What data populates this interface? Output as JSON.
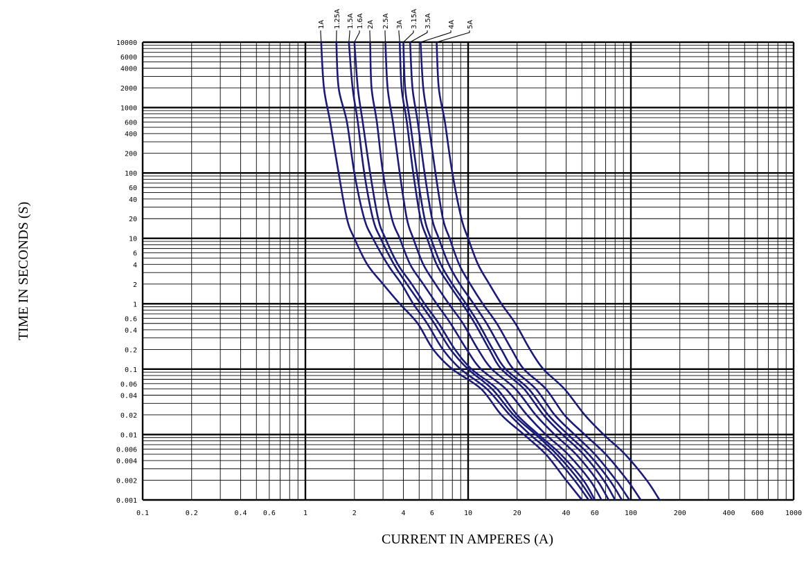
{
  "chart_data": {
    "type": "line",
    "title": "",
    "xlabel": "CURRENT IN AMPERES  (A)",
    "ylabel": "TIME IN SECONDS  (S)",
    "x_scale": "log",
    "y_scale": "log",
    "xlim": [
      0.1,
      1000
    ],
    "ylim": [
      0.001,
      10000
    ],
    "grid": true,
    "x_tick_labels": [
      {
        "value": 0.1,
        "label": "0.1"
      },
      {
        "value": 0.2,
        "label": "0.2"
      },
      {
        "value": 0.4,
        "label": "0.4"
      },
      {
        "value": 0.6,
        "label": "0.6"
      },
      {
        "value": 1,
        "label": "1"
      },
      {
        "value": 2,
        "label": "2"
      },
      {
        "value": 4,
        "label": "4"
      },
      {
        "value": 6,
        "label": "6"
      },
      {
        "value": 10,
        "label": "10"
      },
      {
        "value": 20,
        "label": "20"
      },
      {
        "value": 40,
        "label": "40"
      },
      {
        "value": 60,
        "label": "60"
      },
      {
        "value": 100,
        "label": "100"
      },
      {
        "value": 200,
        "label": "200"
      },
      {
        "value": 400,
        "label": "400"
      },
      {
        "value": 600,
        "label": "600"
      },
      {
        "value": 1000,
        "label": "1000"
      }
    ],
    "y_tick_labels": [
      {
        "value": 10000,
        "label": "10000"
      },
      {
        "value": 6000,
        "label": "6000"
      },
      {
        "value": 4000,
        "label": "4000"
      },
      {
        "value": 2000,
        "label": "2000"
      },
      {
        "value": 1000,
        "label": "1000"
      },
      {
        "value": 600,
        "label": "600"
      },
      {
        "value": 400,
        "label": "400"
      },
      {
        "value": 200,
        "label": "200"
      },
      {
        "value": 100,
        "label": "100"
      },
      {
        "value": 60,
        "label": "60"
      },
      {
        "value": 40,
        "label": "40"
      },
      {
        "value": 20,
        "label": "20"
      },
      {
        "value": 10,
        "label": "10"
      },
      {
        "value": 6,
        "label": "6"
      },
      {
        "value": 4,
        "label": "4"
      },
      {
        "value": 2,
        "label": "2"
      },
      {
        "value": 1,
        "label": "1"
      },
      {
        "value": 0.6,
        "label": "0.6"
      },
      {
        "value": 0.4,
        "label": "0.4"
      },
      {
        "value": 0.2,
        "label": "0.2"
      },
      {
        "value": 0.1,
        "label": "0.1"
      },
      {
        "value": 0.06,
        "label": "0.06"
      },
      {
        "value": 0.04,
        "label": "0.04"
      },
      {
        "value": 0.02,
        "label": "0.02"
      },
      {
        "value": 0.01,
        "label": "0.01"
      },
      {
        "value": 0.006,
        "label": "0.006"
      },
      {
        "value": 0.004,
        "label": "0.004"
      },
      {
        "value": 0.002,
        "label": "0.002"
      },
      {
        "value": 0.001,
        "label": "0.001"
      }
    ],
    "curve_color": "#1a1a7e",
    "grid_color": "#000000",
    "series": [
      {
        "name": "1A",
        "points": [
          [
            1.25,
            10000
          ],
          [
            1.3,
            2000
          ],
          [
            1.42,
            600
          ],
          [
            1.6,
            100
          ],
          [
            1.8,
            20
          ],
          [
            2.0,
            10
          ],
          [
            2.4,
            4
          ],
          [
            3.0,
            2
          ],
          [
            3.8,
            1
          ],
          [
            4.9,
            0.5
          ],
          [
            6.1,
            0.2
          ],
          [
            8.0,
            0.1
          ],
          [
            12.0,
            0.05
          ],
          [
            16.0,
            0.02
          ],
          [
            22.0,
            0.01
          ],
          [
            30.0,
            0.005
          ],
          [
            40.0,
            0.002
          ],
          [
            50.0,
            0.001
          ]
        ]
      },
      {
        "name": "1.25A",
        "points": [
          [
            1.55,
            10000
          ],
          [
            1.6,
            2000
          ],
          [
            1.8,
            600
          ],
          [
            2.0,
            100
          ],
          [
            2.3,
            20
          ],
          [
            2.6,
            10
          ],
          [
            3.2,
            4
          ],
          [
            3.9,
            2
          ],
          [
            4.6,
            1
          ],
          [
            5.6,
            0.5
          ],
          [
            7.0,
            0.2
          ],
          [
            9.0,
            0.1
          ],
          [
            13.0,
            0.05
          ],
          [
            18.0,
            0.02
          ],
          [
            24.0,
            0.01
          ],
          [
            33.0,
            0.005
          ],
          [
            45.0,
            0.002
          ],
          [
            55.0,
            0.001
          ]
        ]
      },
      {
        "name": "1.5A",
        "points": [
          [
            1.85,
            10000
          ],
          [
            1.95,
            2000
          ],
          [
            2.1,
            600
          ],
          [
            2.3,
            100
          ],
          [
            2.6,
            20
          ],
          [
            2.9,
            10
          ],
          [
            3.5,
            4
          ],
          [
            4.2,
            2
          ],
          [
            5.1,
            1
          ],
          [
            6.2,
            0.5
          ],
          [
            7.8,
            0.2
          ],
          [
            10.0,
            0.1
          ],
          [
            14.0,
            0.05
          ],
          [
            19.0,
            0.02
          ],
          [
            26.0,
            0.01
          ],
          [
            35.0,
            0.005
          ],
          [
            48.0,
            0.002
          ],
          [
            58.0,
            0.001
          ]
        ]
      },
      {
        "name": "1.6A",
        "points": [
          [
            2.0,
            10000
          ],
          [
            2.1,
            2000
          ],
          [
            2.25,
            600
          ],
          [
            2.5,
            100
          ],
          [
            2.8,
            20
          ],
          [
            3.1,
            10
          ],
          [
            3.7,
            4
          ],
          [
            4.5,
            2
          ],
          [
            5.4,
            1
          ],
          [
            6.6,
            0.5
          ],
          [
            8.3,
            0.2
          ],
          [
            10.5,
            0.1
          ],
          [
            15.0,
            0.05
          ],
          [
            20.0,
            0.02
          ],
          [
            27.0,
            0.01
          ],
          [
            37.0,
            0.005
          ],
          [
            51.0,
            0.002
          ],
          [
            60.0,
            0.001
          ]
        ]
      },
      {
        "name": "2A",
        "points": [
          [
            2.5,
            10000
          ],
          [
            2.55,
            2000
          ],
          [
            2.75,
            600
          ],
          [
            3.0,
            100
          ],
          [
            3.4,
            20
          ],
          [
            3.8,
            10
          ],
          [
            4.4,
            4
          ],
          [
            5.3,
            2
          ],
          [
            6.4,
            1
          ],
          [
            7.8,
            0.5
          ],
          [
            9.8,
            0.2
          ],
          [
            12.0,
            0.1
          ],
          [
            17.0,
            0.05
          ],
          [
            23.0,
            0.02
          ],
          [
            30.0,
            0.01
          ],
          [
            41.0,
            0.005
          ],
          [
            56.0,
            0.002
          ],
          [
            66.0,
            0.001
          ]
        ]
      },
      {
        "name": "2.5A",
        "points": [
          [
            3.1,
            10000
          ],
          [
            3.2,
            2000
          ],
          [
            3.45,
            600
          ],
          [
            3.8,
            100
          ],
          [
            4.2,
            20
          ],
          [
            4.6,
            10
          ],
          [
            5.3,
            4
          ],
          [
            6.3,
            2
          ],
          [
            7.6,
            1
          ],
          [
            9.3,
            0.5
          ],
          [
            11.5,
            0.2
          ],
          [
            14.0,
            0.1
          ],
          [
            19.5,
            0.05
          ],
          [
            26.0,
            0.02
          ],
          [
            34.0,
            0.01
          ],
          [
            46.0,
            0.005
          ],
          [
            62.0,
            0.002
          ],
          [
            73.0,
            0.001
          ]
        ]
      },
      {
        "name": "3A",
        "points": [
          [
            3.8,
            10000
          ],
          [
            3.9,
            2000
          ],
          [
            4.2,
            600
          ],
          [
            4.6,
            100
          ],
          [
            5.1,
            20
          ],
          [
            5.6,
            10
          ],
          [
            6.4,
            4
          ],
          [
            7.6,
            2
          ],
          [
            9.2,
            1
          ],
          [
            11.0,
            0.5
          ],
          [
            13.5,
            0.2
          ],
          [
            16.0,
            0.1
          ],
          [
            22.0,
            0.05
          ],
          [
            29.0,
            0.02
          ],
          [
            38.0,
            0.01
          ],
          [
            51.0,
            0.005
          ],
          [
            68.0,
            0.002
          ],
          [
            80.0,
            0.001
          ]
        ]
      },
      {
        "name": "3.15A",
        "points": [
          [
            4.0,
            10000
          ],
          [
            4.1,
            2000
          ],
          [
            4.4,
            600
          ],
          [
            4.85,
            100
          ],
          [
            5.4,
            20
          ],
          [
            5.9,
            10
          ],
          [
            6.8,
            4
          ],
          [
            8.0,
            2
          ],
          [
            9.7,
            1
          ],
          [
            11.6,
            0.5
          ],
          [
            14.2,
            0.2
          ],
          [
            17.0,
            0.1
          ],
          [
            23.5,
            0.05
          ],
          [
            31.0,
            0.02
          ],
          [
            41.0,
            0.01
          ],
          [
            55.0,
            0.005
          ],
          [
            74.0,
            0.002
          ],
          [
            88.0,
            0.001
          ]
        ]
      },
      {
        "name": "3.5A",
        "points": [
          [
            4.4,
            10000
          ],
          [
            4.55,
            2000
          ],
          [
            4.9,
            600
          ],
          [
            5.4,
            100
          ],
          [
            6.0,
            20
          ],
          [
            6.6,
            10
          ],
          [
            7.6,
            4
          ],
          [
            8.9,
            2
          ],
          [
            10.8,
            1
          ],
          [
            13.0,
            0.5
          ],
          [
            16.0,
            0.2
          ],
          [
            19.0,
            0.1
          ],
          [
            26.0,
            0.05
          ],
          [
            34.0,
            0.02
          ],
          [
            45.0,
            0.01
          ],
          [
            60.0,
            0.005
          ],
          [
            81.0,
            0.002
          ],
          [
            98.0,
            0.001
          ]
        ]
      },
      {
        "name": "4A",
        "points": [
          [
            5.1,
            10000
          ],
          [
            5.3,
            2000
          ],
          [
            5.7,
            600
          ],
          [
            6.3,
            100
          ],
          [
            7.0,
            20
          ],
          [
            7.7,
            10
          ],
          [
            8.8,
            4
          ],
          [
            10.3,
            2
          ],
          [
            12.3,
            1
          ],
          [
            15.0,
            0.5
          ],
          [
            18.5,
            0.2
          ],
          [
            22.0,
            0.1
          ],
          [
            30.0,
            0.05
          ],
          [
            39.0,
            0.02
          ],
          [
            52.0,
            0.01
          ],
          [
            70.0,
            0.005
          ],
          [
            95.0,
            0.002
          ],
          [
            115.0,
            0.001
          ]
        ]
      },
      {
        "name": "5A",
        "points": [
          [
            6.4,
            10000
          ],
          [
            6.6,
            2000
          ],
          [
            7.2,
            600
          ],
          [
            8.0,
            100
          ],
          [
            9.1,
            20
          ],
          [
            10.0,
            10
          ],
          [
            11.5,
            4
          ],
          [
            13.5,
            2
          ],
          [
            16.0,
            1
          ],
          [
            19.5,
            0.5
          ],
          [
            24.0,
            0.2
          ],
          [
            29.0,
            0.1
          ],
          [
            39.0,
            0.05
          ],
          [
            52.0,
            0.02
          ],
          [
            68.0,
            0.01
          ],
          [
            92.0,
            0.005
          ],
          [
            125.0,
            0.002
          ],
          [
            150.0,
            0.001
          ]
        ]
      }
    ]
  }
}
